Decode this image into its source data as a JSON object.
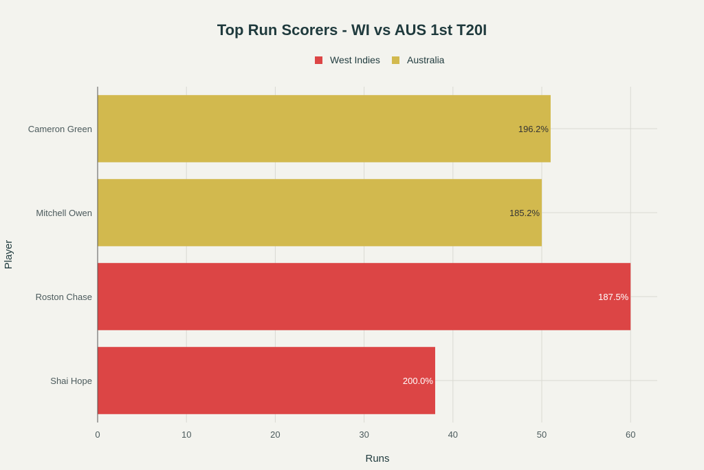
{
  "chart_data": {
    "type": "bar",
    "orientation": "horizontal",
    "title": "Top Run Scorers - WI vs AUS 1st T20I",
    "xlabel": "Runs",
    "ylabel": "Player",
    "xlim": [
      0,
      63
    ],
    "xticks": [
      0,
      10,
      20,
      30,
      40,
      50,
      60
    ],
    "grid": true,
    "legend_position": "top-center",
    "categories": [
      "Cameron Green",
      "Mitchell Owen",
      "Roston Chase",
      "Shai Hope"
    ],
    "values": [
      51,
      50,
      60,
      38
    ],
    "bar_labels": [
      "196.2%",
      "185.2%",
      "187.5%",
      "200.0%"
    ],
    "teams": [
      "Australia",
      "Australia",
      "West Indies",
      "West Indies"
    ],
    "legend": [
      {
        "name": "West Indies",
        "color": "#dc4545"
      },
      {
        "name": "Australia",
        "color": "#d2b94e"
      }
    ],
    "bar_label_colors": {
      "West Indies": "#ffffff",
      "Australia": "#333333"
    }
  }
}
